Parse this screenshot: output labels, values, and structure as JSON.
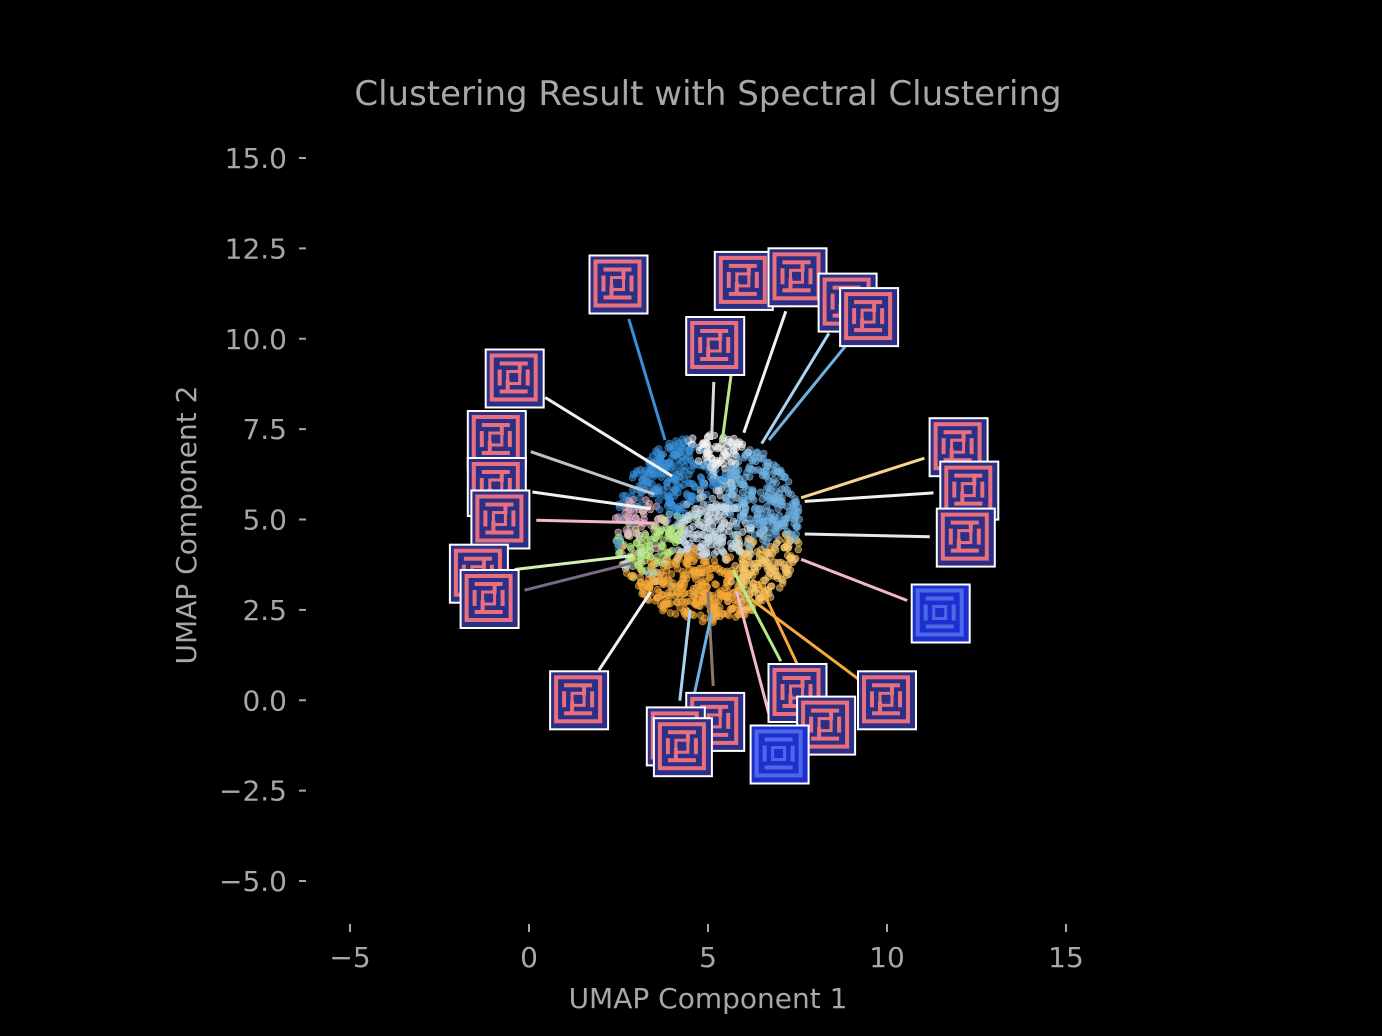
{
  "chart_data": {
    "type": "scatter",
    "title": "Clustering Result with Spectral Clustering",
    "xlabel": "UMAP Component 1",
    "ylabel": "UMAP Component 2",
    "xlim": [
      -5,
      15
    ],
    "ylim": [
      -5,
      15
    ],
    "xticks": [
      -5,
      0,
      5,
      10,
      15
    ],
    "xtick_labels": [
      "−5",
      "0",
      "5",
      "10",
      "15"
    ],
    "yticks": [
      15,
      12.5,
      10,
      7.5,
      5,
      2.5,
      0,
      -2.5,
      -5
    ],
    "ytick_labels": [
      "15.0",
      "12.5",
      "10.0",
      "7.5",
      "5.0",
      "2.5",
      "0.0",
      "−2.5",
      "−5.0"
    ],
    "grid": false,
    "background": "#000000",
    "point_cloud": {
      "center": [
        5.0,
        4.75
      ],
      "radius": 2.6,
      "count": 1400
    },
    "clusters": [
      {
        "color": "#f0f2f4",
        "center": [
          5.3,
          7.2
        ],
        "spread": 0.55
      },
      {
        "color": "#3a8fd8",
        "center": [
          4.0,
          5.8
        ],
        "spread": 0.9
      },
      {
        "color": "#6fb0e0",
        "center": [
          6.4,
          5.6
        ],
        "spread": 0.9
      },
      {
        "color": "#c9dbe8",
        "center": [
          5.0,
          4.7
        ],
        "spread": 1.0
      },
      {
        "color": "#f5a93a",
        "center": [
          4.8,
          3.4
        ],
        "spread": 0.9
      },
      {
        "color": "#f7c766",
        "center": [
          6.5,
          3.6
        ],
        "spread": 0.7
      },
      {
        "color": "#b8e986",
        "center": [
          3.7,
          4.6
        ],
        "spread": 0.6
      },
      {
        "color": "#e8b4c8",
        "center": [
          3.4,
          5.1
        ],
        "spread": 0.5
      }
    ],
    "thumbnails": [
      {
        "thumb": [
          2.5,
          11.5
        ],
        "point": [
          3.8,
          7.2
        ],
        "line_color": "#3a8fd8",
        "style": "pink"
      },
      {
        "thumb": [
          6.0,
          11.6
        ],
        "point": [
          5.4,
          7.2
        ],
        "line_color": "#b8e986",
        "style": "pink"
      },
      {
        "thumb": [
          7.5,
          11.7
        ],
        "point": [
          6.0,
          7.4
        ],
        "line_color": "#f0f2f4",
        "style": "pink"
      },
      {
        "thumb": [
          8.9,
          11.0
        ],
        "point": [
          6.5,
          7.1
        ],
        "line_color": "#a8d4f0",
        "style": "pink"
      },
      {
        "thumb": [
          9.5,
          10.6
        ],
        "point": [
          6.7,
          7.2
        ],
        "line_color": "#6fb0e0",
        "style": "pink"
      },
      {
        "thumb": [
          5.2,
          9.8
        ],
        "point": [
          5.1,
          7.2
        ],
        "line_color": "#d8d8d8",
        "style": "pink"
      },
      {
        "thumb": [
          -0.4,
          8.9
        ],
        "point": [
          4.0,
          6.2
        ],
        "line_color": "#f0f2f4",
        "style": "pink"
      },
      {
        "thumb": [
          -0.9,
          7.2
        ],
        "point": [
          3.5,
          5.7
        ],
        "line_color": "#bfc3c8",
        "style": "pink"
      },
      {
        "thumb": [
          -0.9,
          5.9
        ],
        "point": [
          3.4,
          5.3
        ],
        "line_color": "#f0f2f4",
        "style": "pink"
      },
      {
        "thumb": [
          -0.8,
          5.0
        ],
        "point": [
          3.5,
          4.9
        ],
        "line_color": "#f2b8c6",
        "style": "pink"
      },
      {
        "thumb": [
          -1.4,
          3.5
        ],
        "point": [
          2.9,
          4.0
        ],
        "line_color": "#d4f0b0",
        "style": "pink"
      },
      {
        "thumb": [
          -1.1,
          2.8
        ],
        "point": [
          2.9,
          3.8
        ],
        "line_color": "#7a6a82",
        "style": "pink"
      },
      {
        "thumb": [
          1.4,
          0.0
        ],
        "point": [
          3.4,
          3.0
        ],
        "line_color": "#f0f2f4",
        "style": "pink"
      },
      {
        "thumb": [
          12.0,
          7.0
        ],
        "point": [
          7.6,
          5.6
        ],
        "line_color": "#f5d58a",
        "style": "pink"
      },
      {
        "thumb": [
          12.3,
          5.8
        ],
        "point": [
          7.7,
          5.5
        ],
        "line_color": "#f0f2f4",
        "style": "pink"
      },
      {
        "thumb": [
          12.2,
          4.5
        ],
        "point": [
          7.7,
          4.6
        ],
        "line_color": "#dfeaf2",
        "style": "pink"
      },
      {
        "thumb": [
          11.5,
          2.4
        ],
        "point": [
          7.6,
          3.9
        ],
        "line_color": "#f2b8c6",
        "style": "blue"
      },
      {
        "thumb": [
          10.0,
          0.0
        ],
        "point": [
          6.2,
          2.8
        ],
        "line_color": "#f5a93a",
        "style": "pink"
      },
      {
        "thumb": [
          7.5,
          0.2
        ],
        "point": [
          5.7,
          3.6
        ],
        "line_color": "#b8e986",
        "style": "pink"
      },
      {
        "thumb": [
          8.3,
          -0.7
        ],
        "point": [
          6.4,
          3.3
        ],
        "line_color": "#f5a93a",
        "style": "pink"
      },
      {
        "thumb": [
          7.0,
          -1.5
        ],
        "point": [
          5.8,
          3.0
        ],
        "line_color": "#f2b8c6",
        "style": "blue"
      },
      {
        "thumb": [
          5.2,
          -0.6
        ],
        "point": [
          5.0,
          3.0
        ],
        "line_color": "#8a7a6a",
        "style": "pink"
      },
      {
        "thumb": [
          4.1,
          -1.0
        ],
        "point": [
          4.5,
          2.5
        ],
        "line_color": "#a8d4f0",
        "style": "pink"
      },
      {
        "thumb": [
          4.3,
          -1.3
        ],
        "point": [
          5.1,
          2.4
        ],
        "line_color": "#6fb0e0",
        "style": "pink"
      }
    ]
  }
}
